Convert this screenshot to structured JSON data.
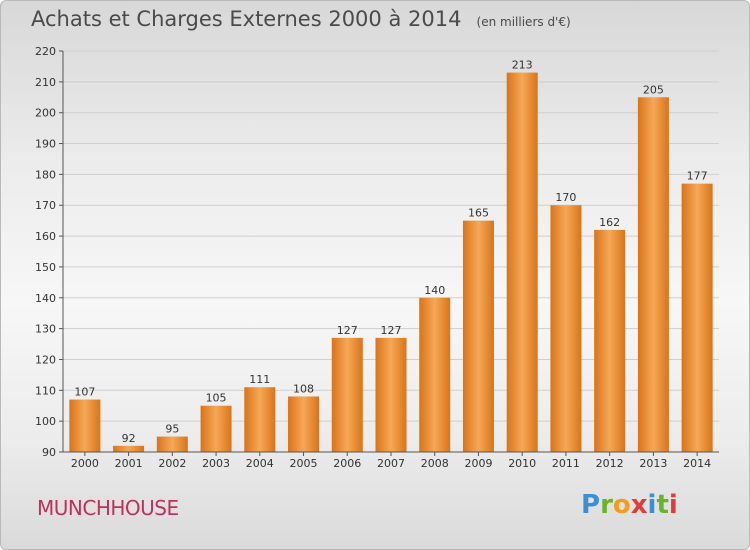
{
  "title": "Achats et Charges Externes 2000 à 2014",
  "subtitle": "(en milliers d'€)",
  "town": "MUNCHHOUSE",
  "logo": {
    "letters": [
      "P",
      "r",
      "o",
      "x",
      "i",
      "t",
      "i"
    ],
    "colors": [
      "#3b8fd6",
      "#6ab42d",
      "#f39c1b",
      "#e23b3b",
      "#3b8fd6",
      "#6ab42d",
      "#e23b3b"
    ]
  },
  "colors": {
    "bar_light": "#f6a856",
    "bar_dark": "#d8741b",
    "axis": "#555555",
    "grid": "#cfcfcf"
  },
  "chart_data": {
    "type": "bar",
    "title": "Achats et Charges Externes 2000 à 2014",
    "subtitle": "(en milliers d'€)",
    "xlabel": "",
    "ylabel": "",
    "ylim": [
      90,
      220
    ],
    "yticks": [
      90,
      100,
      110,
      120,
      130,
      140,
      150,
      160,
      170,
      180,
      190,
      200,
      210,
      220
    ],
    "grid": true,
    "categories": [
      "2000",
      "2001",
      "2002",
      "2003",
      "2004",
      "2005",
      "2006",
      "2007",
      "2008",
      "2009",
      "2010",
      "2011",
      "2012",
      "2013",
      "2014"
    ],
    "values": [
      107,
      92,
      95,
      105,
      111,
      108,
      127,
      127,
      140,
      165,
      213,
      170,
      162,
      205,
      177
    ]
  }
}
